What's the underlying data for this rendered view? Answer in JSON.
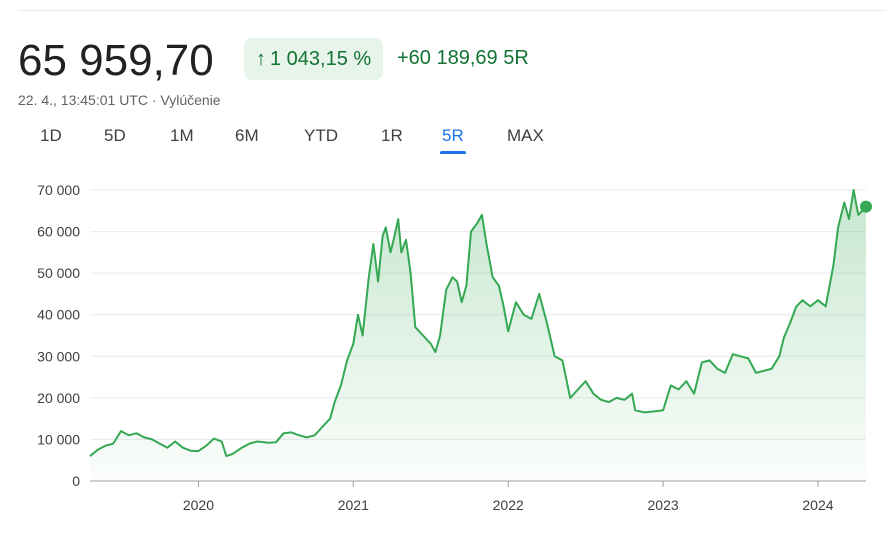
{
  "header": {
    "price": "65 959,70",
    "change_pct": "1 043,15 %",
    "change_arrow": "↑",
    "change_abs": "+60 189,69",
    "change_period": "5R",
    "timestamp": "22. 4., 13:45:01 UTC · Vylúčenie"
  },
  "tabs": [
    {
      "label": "1D",
      "active": false
    },
    {
      "label": "5D",
      "active": false
    },
    {
      "label": "1M",
      "active": false
    },
    {
      "label": "6M",
      "active": false
    },
    {
      "label": "YTD",
      "active": false
    },
    {
      "label": "1R",
      "active": false
    },
    {
      "label": "5R",
      "active": true
    },
    {
      "label": "MAX",
      "active": false
    }
  ],
  "colors": {
    "line": "#34a853",
    "fill_top": "#34a853",
    "grid": "#e8eaed",
    "badge_bg": "#e6f4ea",
    "positive": "#137333",
    "active_tab": "#1a73e8"
  },
  "chart_data": {
    "type": "area",
    "title": "",
    "xlabel": "",
    "ylabel": "",
    "ylim": [
      0,
      70000
    ],
    "yticks": [
      0,
      10000,
      20000,
      30000,
      40000,
      50000,
      60000,
      70000
    ],
    "ytick_labels": [
      "0",
      "10 000",
      "20 000",
      "30 000",
      "40 000",
      "50 000",
      "60 000",
      "70 000"
    ],
    "xlim": [
      2019.3,
      2024.31
    ],
    "xticks": [
      2020,
      2021,
      2022,
      2023,
      2024
    ],
    "xtick_labels": [
      "2020",
      "2021",
      "2022",
      "2023",
      "2024"
    ],
    "grid": true,
    "series": [
      {
        "values": [
          [
            2019.3,
            6000
          ],
          [
            2019.35,
            7500
          ],
          [
            2019.4,
            8500
          ],
          [
            2019.45,
            9000
          ],
          [
            2019.5,
            12000
          ],
          [
            2019.55,
            11000
          ],
          [
            2019.6,
            11500
          ],
          [
            2019.65,
            10500
          ],
          [
            2019.7,
            10000
          ],
          [
            2019.75,
            9000
          ],
          [
            2019.8,
            8000
          ],
          [
            2019.85,
            9500
          ],
          [
            2019.9,
            8000
          ],
          [
            2019.95,
            7300
          ],
          [
            2020.0,
            7200
          ],
          [
            2020.05,
            8500
          ],
          [
            2020.1,
            10200
          ],
          [
            2020.15,
            9500
          ],
          [
            2020.18,
            6000
          ],
          [
            2020.22,
            6500
          ],
          [
            2020.28,
            8000
          ],
          [
            2020.33,
            9000
          ],
          [
            2020.38,
            9500
          ],
          [
            2020.45,
            9200
          ],
          [
            2020.5,
            9300
          ],
          [
            2020.55,
            11500
          ],
          [
            2020.6,
            11700
          ],
          [
            2020.65,
            11000
          ],
          [
            2020.7,
            10500
          ],
          [
            2020.75,
            11000
          ],
          [
            2020.8,
            13000
          ],
          [
            2020.85,
            15000
          ],
          [
            2020.88,
            19000
          ],
          [
            2020.92,
            23000
          ],
          [
            2020.96,
            29000
          ],
          [
            2021.0,
            33000
          ],
          [
            2021.03,
            40000
          ],
          [
            2021.06,
            35000
          ],
          [
            2021.1,
            49000
          ],
          [
            2021.13,
            57000
          ],
          [
            2021.16,
            48000
          ],
          [
            2021.19,
            59000
          ],
          [
            2021.21,
            61000
          ],
          [
            2021.24,
            55000
          ],
          [
            2021.26,
            58000
          ],
          [
            2021.29,
            63000
          ],
          [
            2021.31,
            55000
          ],
          [
            2021.34,
            58000
          ],
          [
            2021.37,
            50000
          ],
          [
            2021.4,
            37000
          ],
          [
            2021.45,
            35000
          ],
          [
            2021.5,
            33000
          ],
          [
            2021.53,
            31000
          ],
          [
            2021.56,
            35000
          ],
          [
            2021.6,
            46000
          ],
          [
            2021.64,
            49000
          ],
          [
            2021.67,
            48000
          ],
          [
            2021.7,
            43000
          ],
          [
            2021.73,
            47000
          ],
          [
            2021.76,
            60000
          ],
          [
            2021.8,
            62000
          ],
          [
            2021.83,
            64000
          ],
          [
            2021.86,
            57000
          ],
          [
            2021.9,
            49000
          ],
          [
            2021.94,
            47000
          ],
          [
            2021.97,
            42000
          ],
          [
            2022.0,
            36000
          ],
          [
            2022.05,
            43000
          ],
          [
            2022.1,
            40000
          ],
          [
            2022.15,
            39000
          ],
          [
            2022.2,
            45000
          ],
          [
            2022.25,
            38000
          ],
          [
            2022.3,
            30000
          ],
          [
            2022.35,
            29000
          ],
          [
            2022.4,
            20000
          ],
          [
            2022.45,
            22000
          ],
          [
            2022.5,
            24000
          ],
          [
            2022.55,
            21000
          ],
          [
            2022.6,
            19500
          ],
          [
            2022.65,
            19000
          ],
          [
            2022.7,
            20000
          ],
          [
            2022.75,
            19500
          ],
          [
            2022.8,
            21000
          ],
          [
            2022.82,
            17000
          ],
          [
            2022.88,
            16500
          ],
          [
            2022.95,
            16800
          ],
          [
            2023.0,
            17000
          ],
          [
            2023.05,
            23000
          ],
          [
            2023.1,
            22000
          ],
          [
            2023.15,
            24000
          ],
          [
            2023.2,
            21000
          ],
          [
            2023.25,
            28500
          ],
          [
            2023.3,
            29000
          ],
          [
            2023.35,
            27000
          ],
          [
            2023.4,
            26000
          ],
          [
            2023.45,
            30500
          ],
          [
            2023.5,
            30000
          ],
          [
            2023.55,
            29500
          ],
          [
            2023.6,
            26000
          ],
          [
            2023.65,
            26500
          ],
          [
            2023.7,
            27000
          ],
          [
            2023.75,
            30000
          ],
          [
            2023.78,
            34500
          ],
          [
            2023.82,
            38000
          ],
          [
            2023.86,
            42000
          ],
          [
            2023.9,
            43500
          ],
          [
            2023.95,
            42000
          ],
          [
            2024.0,
            43500
          ],
          [
            2024.05,
            42000
          ],
          [
            2024.1,
            52000
          ],
          [
            2024.13,
            61000
          ],
          [
            2024.17,
            67000
          ],
          [
            2024.2,
            63000
          ],
          [
            2024.23,
            70000
          ],
          [
            2024.26,
            64000
          ],
          [
            2024.31,
            66000
          ]
        ]
      }
    ]
  }
}
